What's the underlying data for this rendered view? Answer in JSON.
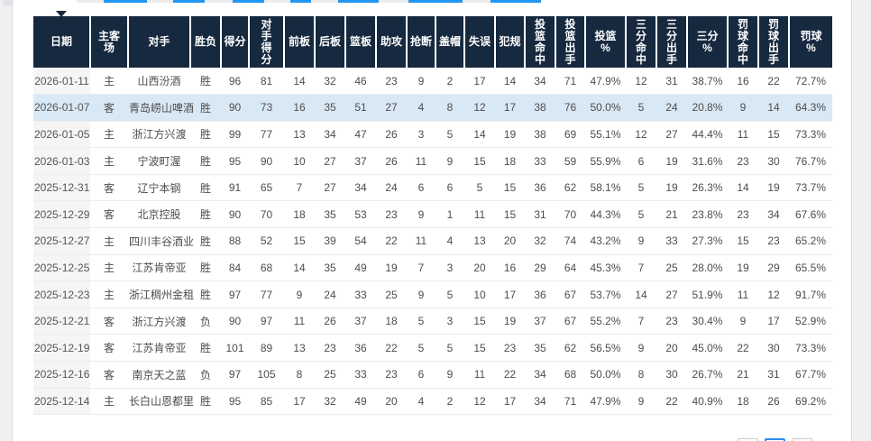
{
  "colors": {
    "header_bg": "#16293f",
    "header_text": "#ffffff",
    "row_highlight": "#d9e8f5",
    "date_column_bg": "#f5f5f6",
    "accent_blue": "#2196f3",
    "body_text": "#4d4d4d"
  },
  "table": {
    "columns": [
      "日期",
      "主客\n场",
      "对手",
      "胜负",
      "得分",
      "对\n手\n得\n分",
      "前板",
      "后板",
      "篮板",
      "助攻",
      "抢断",
      "盖帽",
      "失误",
      "犯规",
      "投\n篮\n命\n中",
      "投\n篮\n出\n手",
      "投篮\n%",
      "三\n分\n命\n中",
      "三\n分\n出\n手",
      "三分\n%",
      "罚\n球\n命\n中",
      "罚\n球\n出\n手",
      "罚球\n%"
    ],
    "highlighted_row_index": 1,
    "rows": [
      [
        "2026-01-11",
        "主",
        "山西汾酒",
        "胜",
        "96",
        "81",
        "14",
        "32",
        "46",
        "23",
        "9",
        "2",
        "17",
        "14",
        "34",
        "71",
        "47.9%",
        "12",
        "31",
        "38.7%",
        "16",
        "22",
        "72.7%"
      ],
      [
        "2026-01-07",
        "客",
        "青岛崂山啤酒",
        "胜",
        "90",
        "73",
        "16",
        "35",
        "51",
        "27",
        "4",
        "8",
        "12",
        "17",
        "38",
        "76",
        "50.0%",
        "5",
        "24",
        "20.8%",
        "9",
        "14",
        "64.3%"
      ],
      [
        "2026-01-05",
        "主",
        "浙江方兴渡",
        "胜",
        "99",
        "77",
        "13",
        "34",
        "47",
        "26",
        "3",
        "5",
        "14",
        "19",
        "38",
        "69",
        "55.1%",
        "12",
        "27",
        "44.4%",
        "11",
        "15",
        "73.3%"
      ],
      [
        "2026-01-03",
        "主",
        "宁波町渥",
        "胜",
        "95",
        "90",
        "10",
        "27",
        "37",
        "26",
        "11",
        "9",
        "15",
        "18",
        "33",
        "59",
        "55.9%",
        "6",
        "19",
        "31.6%",
        "23",
        "30",
        "76.7%"
      ],
      [
        "2025-12-31",
        "客",
        "辽宁本钢",
        "胜",
        "91",
        "65",
        "7",
        "27",
        "34",
        "24",
        "6",
        "6",
        "5",
        "15",
        "36",
        "62",
        "58.1%",
        "5",
        "19",
        "26.3%",
        "14",
        "19",
        "73.7%"
      ],
      [
        "2025-12-29",
        "客",
        "北京控股",
        "胜",
        "90",
        "70",
        "18",
        "35",
        "53",
        "23",
        "9",
        "1",
        "11",
        "15",
        "31",
        "70",
        "44.3%",
        "5",
        "21",
        "23.8%",
        "23",
        "34",
        "67.6%"
      ],
      [
        "2025-12-27",
        "主",
        "四川丰谷酒业",
        "胜",
        "88",
        "52",
        "15",
        "39",
        "54",
        "22",
        "11",
        "4",
        "13",
        "20",
        "32",
        "74",
        "43.2%",
        "9",
        "33",
        "27.3%",
        "15",
        "23",
        "65.2%"
      ],
      [
        "2025-12-25",
        "主",
        "江苏肯帝亚",
        "胜",
        "84",
        "68",
        "14",
        "35",
        "49",
        "19",
        "7",
        "3",
        "20",
        "16",
        "29",
        "64",
        "45.3%",
        "7",
        "25",
        "28.0%",
        "19",
        "29",
        "65.5%"
      ],
      [
        "2025-12-23",
        "主",
        "浙江稠州金租",
        "胜",
        "97",
        "77",
        "9",
        "24",
        "33",
        "25",
        "9",
        "5",
        "10",
        "17",
        "36",
        "67",
        "53.7%",
        "14",
        "27",
        "51.9%",
        "11",
        "12",
        "91.7%"
      ],
      [
        "2025-12-21",
        "客",
        "浙江方兴渡",
        "负",
        "90",
        "97",
        "11",
        "26",
        "37",
        "18",
        "5",
        "3",
        "15",
        "19",
        "37",
        "67",
        "55.2%",
        "7",
        "23",
        "30.4%",
        "9",
        "17",
        "52.9%"
      ],
      [
        "2025-12-19",
        "客",
        "江苏肯帝亚",
        "胜",
        "101",
        "89",
        "13",
        "23",
        "36",
        "22",
        "5",
        "5",
        "15",
        "23",
        "35",
        "62",
        "56.5%",
        "9",
        "20",
        "45.0%",
        "22",
        "30",
        "73.3%"
      ],
      [
        "2025-12-16",
        "客",
        "南京天之蓝",
        "负",
        "97",
        "105",
        "8",
        "25",
        "33",
        "23",
        "6",
        "9",
        "11",
        "22",
        "34",
        "68",
        "50.0%",
        "8",
        "30",
        "26.7%",
        "21",
        "31",
        "67.7%"
      ],
      [
        "2025-12-14",
        "主",
        "长白山恩都里",
        "胜",
        "95",
        "85",
        "17",
        "32",
        "49",
        "20",
        "4",
        "2",
        "12",
        "17",
        "34",
        "71",
        "47.9%",
        "9",
        "22",
        "40.9%",
        "18",
        "26",
        "69.2%"
      ]
    ]
  },
  "pagination": {
    "visible_buttons": 3,
    "active_index": 1
  }
}
